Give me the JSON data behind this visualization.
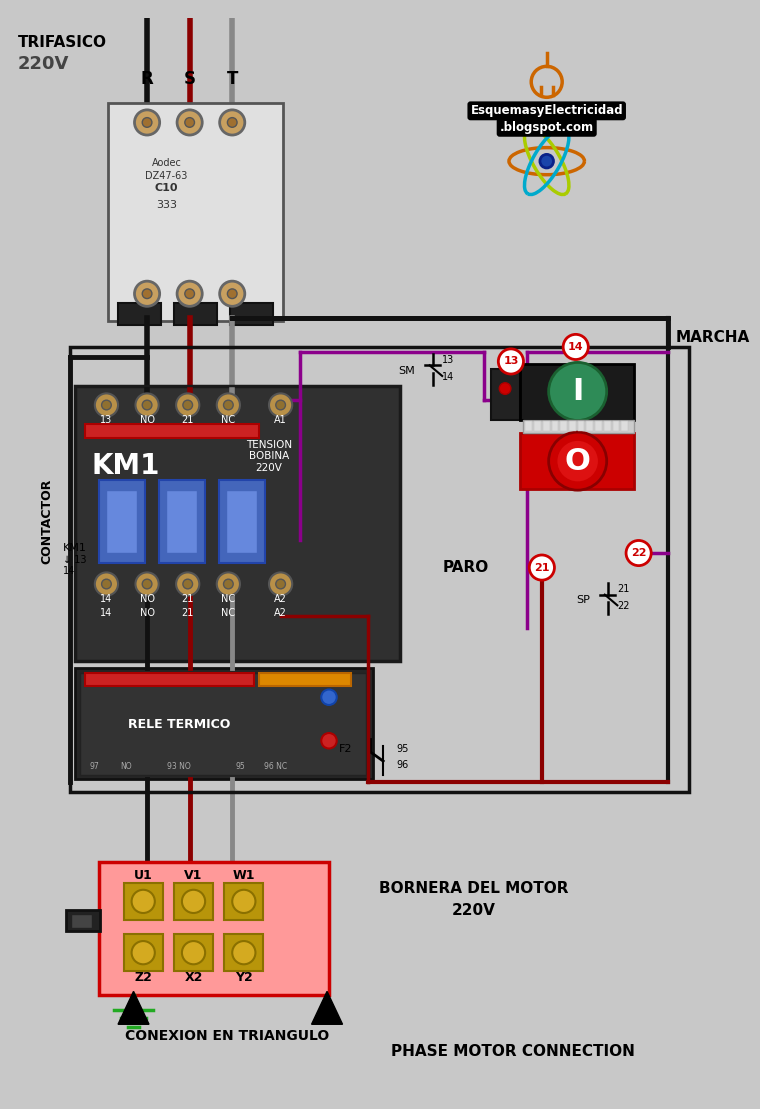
{
  "bg_color": "#c8c8c8",
  "title_line1": "TRIFASICO",
  "title_line2": "220V",
  "phase_labels": [
    "R",
    "S",
    "T"
  ],
  "phase_colors": [
    "#111111",
    "#8B0000",
    "#888888"
  ],
  "contactor_label": "CONTACTOR",
  "km1_label": "KM1",
  "tension_label": "TENSION\nBOBINA\n220V",
  "rele_label": "RELE TERMICO",
  "bornera_label": "BORNERA DEL MOTOR",
  "bornera_label2": "220V",
  "conexion_label": "CONEXION EN TRIANGULO",
  "phase_motor_label": "PHASE MOTOR CONNECTION",
  "marcha_label": "MARCHA",
  "paro_label": "PARO",
  "terminal_top": [
    "13",
    "NO",
    "21",
    "NC",
    "A1"
  ],
  "terminal_bot": [
    "14",
    "NO",
    "21",
    "NC",
    "A2"
  ],
  "motor_top": [
    "U1",
    "V1",
    "W1"
  ],
  "motor_bot": [
    "Z2",
    "X2",
    "Y2"
  ],
  "sm_label": "SM",
  "sp_label": "SP",
  "wire_black": "#111111",
  "wire_red": "#8B0000",
  "wire_gray": "#888888",
  "wire_purple": "#8B008B",
  "green_button": "#2E8B57",
  "red_button": "#CC0000",
  "contactor_blue": "#4169E1"
}
